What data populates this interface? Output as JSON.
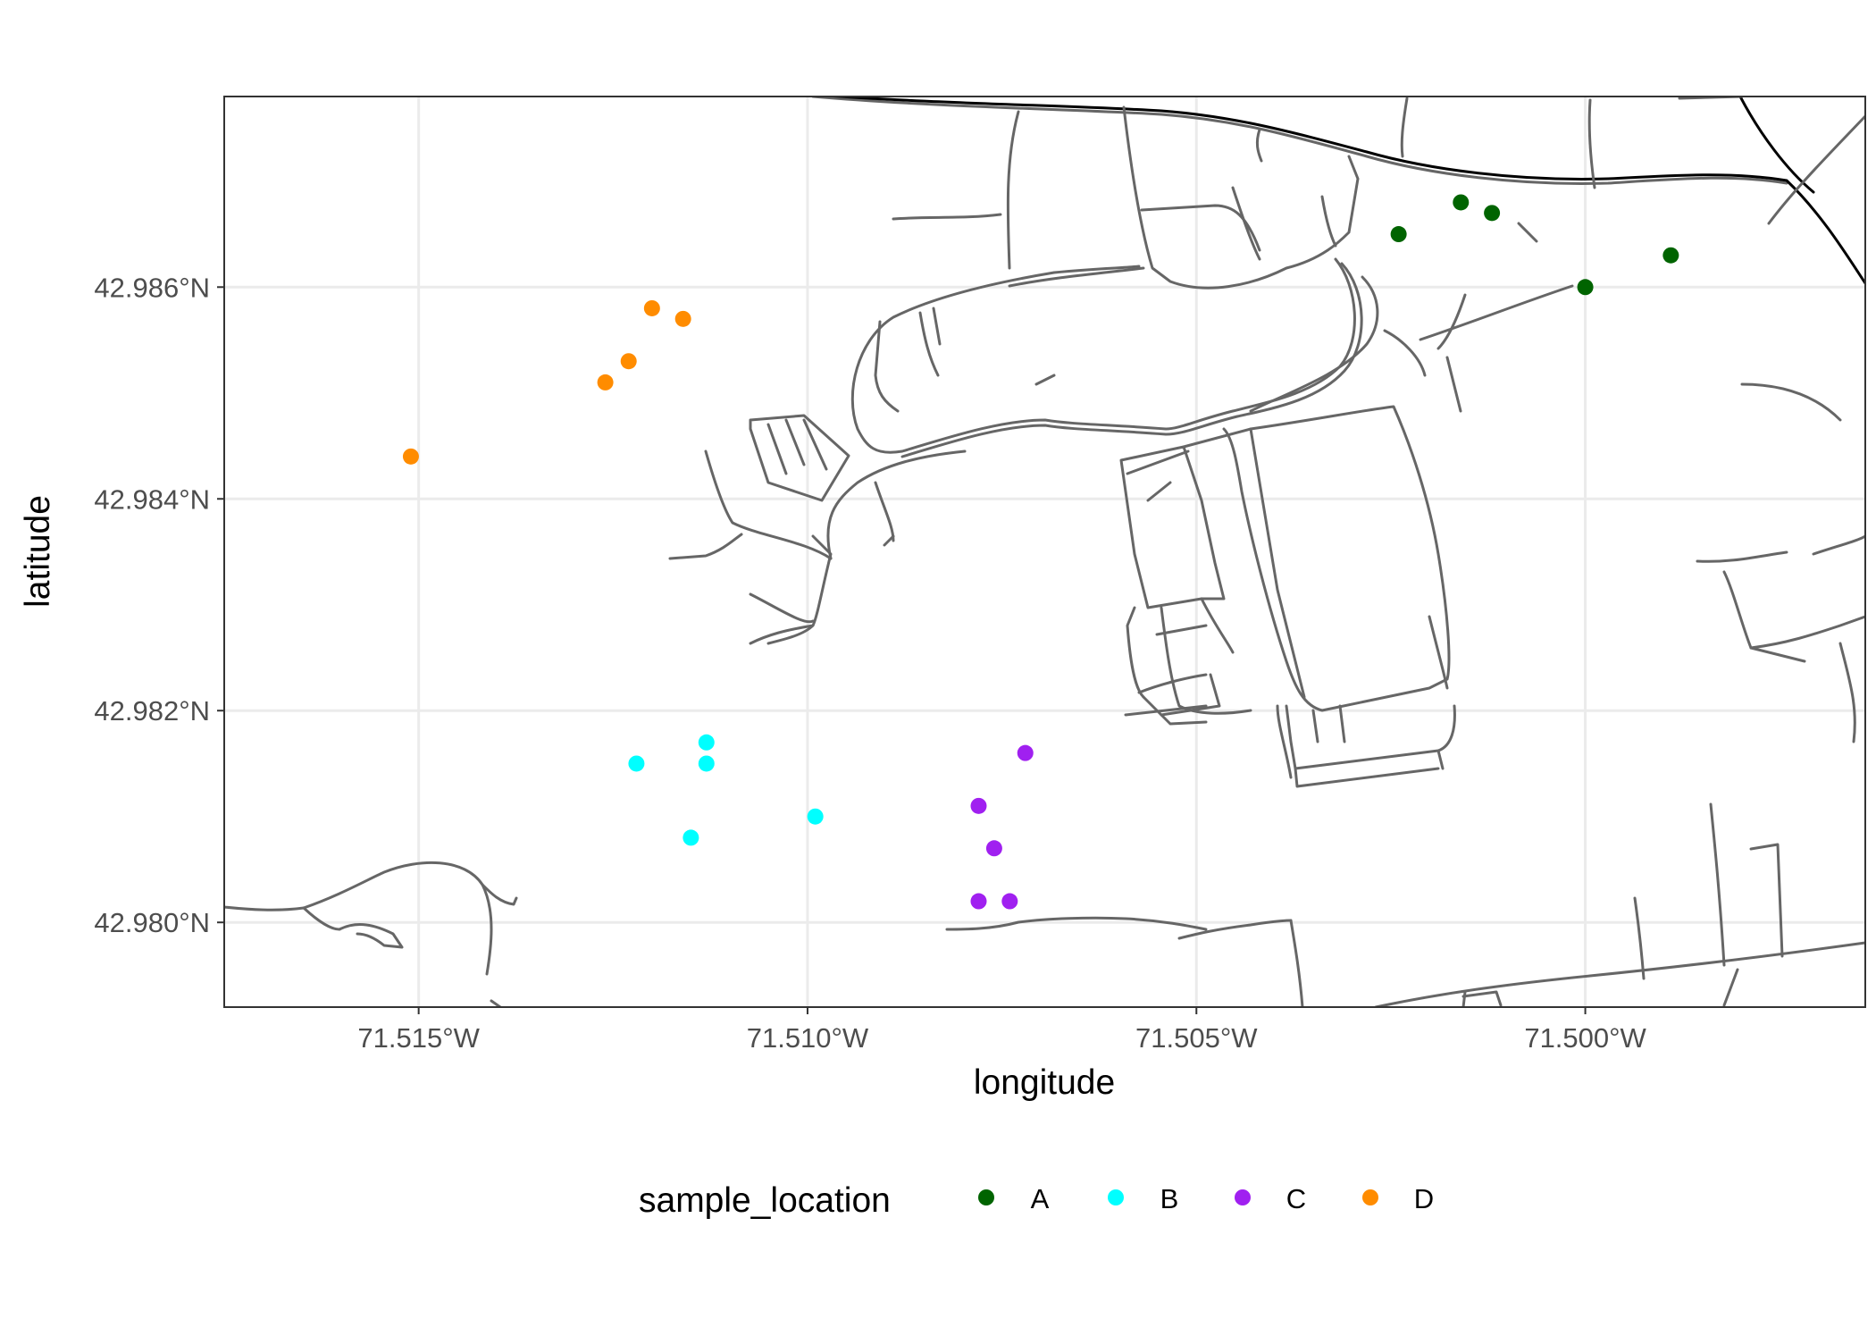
{
  "chart_data": {
    "type": "scatter",
    "title": "",
    "xlabel": "longitude",
    "ylabel": "latitude",
    "xlim": [
      -71.5175,
      -71.4964
    ],
    "ylim": [
      42.9792,
      42.9878
    ],
    "x_ticks": [
      {
        "value": -71.515,
        "label": "71.515°W"
      },
      {
        "value": -71.51,
        "label": "71.510°W"
      },
      {
        "value": -71.505,
        "label": "71.505°W"
      },
      {
        "value": -71.5,
        "label": "71.500°W"
      }
    ],
    "y_ticks": [
      {
        "value": 42.98,
        "label": "42.980°N"
      },
      {
        "value": 42.982,
        "label": "42.982°N"
      },
      {
        "value": 42.984,
        "label": "42.984°N"
      },
      {
        "value": 42.986,
        "label": "42.986°N"
      }
    ],
    "grid": true,
    "legend": {
      "title": "sample_location",
      "placement": "bottom"
    },
    "series": [
      {
        "name": "A",
        "color": "#006400",
        "points": [
          [
            -71.5024,
            42.9865
          ],
          [
            -71.5016,
            42.9868
          ],
          [
            -71.5012,
            42.9867
          ],
          [
            -71.5,
            42.986
          ],
          [
            -71.4989,
            42.9863
          ]
        ]
      },
      {
        "name": "B",
        "color": "#00FFFF",
        "points": [
          [
            -71.5122,
            42.9815
          ],
          [
            -71.5113,
            42.9817
          ],
          [
            -71.5113,
            42.9815
          ],
          [
            -71.5115,
            42.9808
          ],
          [
            -71.5099,
            42.981
          ]
        ]
      },
      {
        "name": "C",
        "color": "#A020F0",
        "points": [
          [
            -71.5072,
            42.9816
          ],
          [
            -71.5078,
            42.9811
          ],
          [
            -71.5076,
            42.9807
          ],
          [
            -71.5078,
            42.9802
          ],
          [
            -71.5074,
            42.9802
          ]
        ]
      },
      {
        "name": "D",
        "color": "#FF8C00",
        "points": [
          [
            -71.512,
            42.9858
          ],
          [
            -71.5116,
            42.9857
          ],
          [
            -71.5123,
            42.9853
          ],
          [
            -71.5126,
            42.9851
          ],
          [
            -71.5151,
            42.9844
          ]
        ]
      }
    ]
  }
}
